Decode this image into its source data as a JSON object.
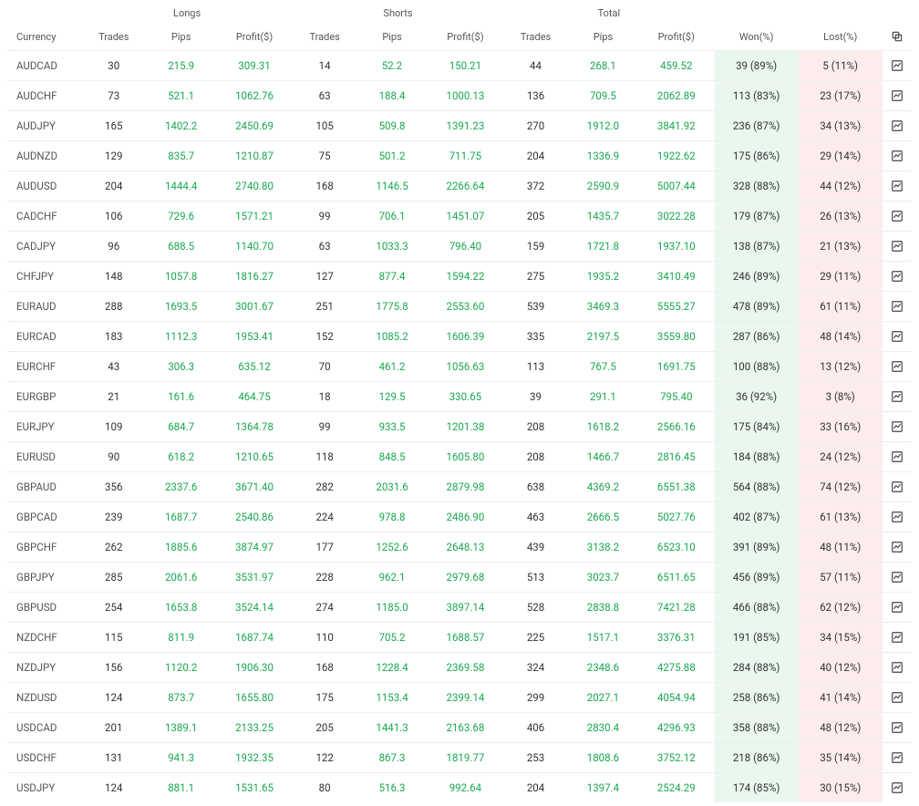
{
  "headers": {
    "group_longs": "Longs",
    "group_shorts": "Shorts",
    "group_total": "Total",
    "currency": "Currency",
    "trades": "Trades",
    "pips": "Pips",
    "profit": "Profit($)",
    "won": "Won(%)",
    "lost": "Lost(%)"
  },
  "colors": {
    "positive": "#1aa850",
    "won_bg": "#e9f7ef",
    "lost_bg": "#fdecec",
    "border": "#eeeeee",
    "text": "#333333",
    "header_text": "#555555",
    "icon": "#444444"
  },
  "rows": [
    {
      "currency": "AUDCAD",
      "l_trades": "30",
      "l_pips": "215.9",
      "l_profit": "309.31",
      "s_trades": "14",
      "s_pips": "52.2",
      "s_profit": "150.21",
      "t_trades": "44",
      "t_pips": "268.1",
      "t_profit": "459.52",
      "won": "39 (89%)",
      "lost": "5 (11%)"
    },
    {
      "currency": "AUDCHF",
      "l_trades": "73",
      "l_pips": "521.1",
      "l_profit": "1062.76",
      "s_trades": "63",
      "s_pips": "188.4",
      "s_profit": "1000.13",
      "t_trades": "136",
      "t_pips": "709.5",
      "t_profit": "2062.89",
      "won": "113 (83%)",
      "lost": "23 (17%)"
    },
    {
      "currency": "AUDJPY",
      "l_trades": "165",
      "l_pips": "1402.2",
      "l_profit": "2450.69",
      "s_trades": "105",
      "s_pips": "509.8",
      "s_profit": "1391.23",
      "t_trades": "270",
      "t_pips": "1912.0",
      "t_profit": "3841.92",
      "won": "236 (87%)",
      "lost": "34 (13%)"
    },
    {
      "currency": "AUDNZD",
      "l_trades": "129",
      "l_pips": "835.7",
      "l_profit": "1210.87",
      "s_trades": "75",
      "s_pips": "501.2",
      "s_profit": "711.75",
      "t_trades": "204",
      "t_pips": "1336.9",
      "t_profit": "1922.62",
      "won": "175 (86%)",
      "lost": "29 (14%)"
    },
    {
      "currency": "AUDUSD",
      "l_trades": "204",
      "l_pips": "1444.4",
      "l_profit": "2740.80",
      "s_trades": "168",
      "s_pips": "1146.5",
      "s_profit": "2266.64",
      "t_trades": "372",
      "t_pips": "2590.9",
      "t_profit": "5007.44",
      "won": "328 (88%)",
      "lost": "44 (12%)"
    },
    {
      "currency": "CADCHF",
      "l_trades": "106",
      "l_pips": "729.6",
      "l_profit": "1571.21",
      "s_trades": "99",
      "s_pips": "706.1",
      "s_profit": "1451.07",
      "t_trades": "205",
      "t_pips": "1435.7",
      "t_profit": "3022.28",
      "won": "179 (87%)",
      "lost": "26 (13%)"
    },
    {
      "currency": "CADJPY",
      "l_trades": "96",
      "l_pips": "688.5",
      "l_profit": "1140.70",
      "s_trades": "63",
      "s_pips": "1033.3",
      "s_profit": "796.40",
      "t_trades": "159",
      "t_pips": "1721.8",
      "t_profit": "1937.10",
      "won": "138 (87%)",
      "lost": "21 (13%)"
    },
    {
      "currency": "CHFJPY",
      "l_trades": "148",
      "l_pips": "1057.8",
      "l_profit": "1816.27",
      "s_trades": "127",
      "s_pips": "877.4",
      "s_profit": "1594.22",
      "t_trades": "275",
      "t_pips": "1935.2",
      "t_profit": "3410.49",
      "won": "246 (89%)",
      "lost": "29 (11%)"
    },
    {
      "currency": "EURAUD",
      "l_trades": "288",
      "l_pips": "1693.5",
      "l_profit": "3001.67",
      "s_trades": "251",
      "s_pips": "1775.8",
      "s_profit": "2553.60",
      "t_trades": "539",
      "t_pips": "3469.3",
      "t_profit": "5555.27",
      "won": "478 (89%)",
      "lost": "61 (11%)"
    },
    {
      "currency": "EURCAD",
      "l_trades": "183",
      "l_pips": "1112.3",
      "l_profit": "1953.41",
      "s_trades": "152",
      "s_pips": "1085.2",
      "s_profit": "1606.39",
      "t_trades": "335",
      "t_pips": "2197.5",
      "t_profit": "3559.80",
      "won": "287 (86%)",
      "lost": "48 (14%)"
    },
    {
      "currency": "EURCHF",
      "l_trades": "43",
      "l_pips": "306.3",
      "l_profit": "635.12",
      "s_trades": "70",
      "s_pips": "461.2",
      "s_profit": "1056.63",
      "t_trades": "113",
      "t_pips": "767.5",
      "t_profit": "1691.75",
      "won": "100 (88%)",
      "lost": "13 (12%)"
    },
    {
      "currency": "EURGBP",
      "l_trades": "21",
      "l_pips": "161.6",
      "l_profit": "464.75",
      "s_trades": "18",
      "s_pips": "129.5",
      "s_profit": "330.65",
      "t_trades": "39",
      "t_pips": "291.1",
      "t_profit": "795.40",
      "won": "36 (92%)",
      "lost": "3 (8%)"
    },
    {
      "currency": "EURJPY",
      "l_trades": "109",
      "l_pips": "684.7",
      "l_profit": "1364.78",
      "s_trades": "99",
      "s_pips": "933.5",
      "s_profit": "1201.38",
      "t_trades": "208",
      "t_pips": "1618.2",
      "t_profit": "2566.16",
      "won": "175 (84%)",
      "lost": "33 (16%)"
    },
    {
      "currency": "EURUSD",
      "l_trades": "90",
      "l_pips": "618.2",
      "l_profit": "1210.65",
      "s_trades": "118",
      "s_pips": "848.5",
      "s_profit": "1605.80",
      "t_trades": "208",
      "t_pips": "1466.7",
      "t_profit": "2816.45",
      "won": "184 (88%)",
      "lost": "24 (12%)"
    },
    {
      "currency": "GBPAUD",
      "l_trades": "356",
      "l_pips": "2337.6",
      "l_profit": "3671.40",
      "s_trades": "282",
      "s_pips": "2031.6",
      "s_profit": "2879.98",
      "t_trades": "638",
      "t_pips": "4369.2",
      "t_profit": "6551.38",
      "won": "564 (88%)",
      "lost": "74 (12%)"
    },
    {
      "currency": "GBPCAD",
      "l_trades": "239",
      "l_pips": "1687.7",
      "l_profit": "2540.86",
      "s_trades": "224",
      "s_pips": "978.8",
      "s_profit": "2486.90",
      "t_trades": "463",
      "t_pips": "2666.5",
      "t_profit": "5027.76",
      "won": "402 (87%)",
      "lost": "61 (13%)"
    },
    {
      "currency": "GBPCHF",
      "l_trades": "262",
      "l_pips": "1885.6",
      "l_profit": "3874.97",
      "s_trades": "177",
      "s_pips": "1252.6",
      "s_profit": "2648.13",
      "t_trades": "439",
      "t_pips": "3138.2",
      "t_profit": "6523.10",
      "won": "391 (89%)",
      "lost": "48 (11%)"
    },
    {
      "currency": "GBPJPY",
      "l_trades": "285",
      "l_pips": "2061.6",
      "l_profit": "3531.97",
      "s_trades": "228",
      "s_pips": "962.1",
      "s_profit": "2979.68",
      "t_trades": "513",
      "t_pips": "3023.7",
      "t_profit": "6511.65",
      "won": "456 (89%)",
      "lost": "57 (11%)"
    },
    {
      "currency": "GBPUSD",
      "l_trades": "254",
      "l_pips": "1653.8",
      "l_profit": "3524.14",
      "s_trades": "274",
      "s_pips": "1185.0",
      "s_profit": "3897.14",
      "t_trades": "528",
      "t_pips": "2838.8",
      "t_profit": "7421.28",
      "won": "466 (88%)",
      "lost": "62 (12%)"
    },
    {
      "currency": "NZDCHF",
      "l_trades": "115",
      "l_pips": "811.9",
      "l_profit": "1687.74",
      "s_trades": "110",
      "s_pips": "705.2",
      "s_profit": "1688.57",
      "t_trades": "225",
      "t_pips": "1517.1",
      "t_profit": "3376.31",
      "won": "191 (85%)",
      "lost": "34 (15%)"
    },
    {
      "currency": "NZDJPY",
      "l_trades": "156",
      "l_pips": "1120.2",
      "l_profit": "1906.30",
      "s_trades": "168",
      "s_pips": "1228.4",
      "s_profit": "2369.58",
      "t_trades": "324",
      "t_pips": "2348.6",
      "t_profit": "4275.88",
      "won": "284 (88%)",
      "lost": "40 (12%)"
    },
    {
      "currency": "NZDUSD",
      "l_trades": "124",
      "l_pips": "873.7",
      "l_profit": "1655.80",
      "s_trades": "175",
      "s_pips": "1153.4",
      "s_profit": "2399.14",
      "t_trades": "299",
      "t_pips": "2027.1",
      "t_profit": "4054.94",
      "won": "258 (86%)",
      "lost": "41 (14%)"
    },
    {
      "currency": "USDCAD",
      "l_trades": "201",
      "l_pips": "1389.1",
      "l_profit": "2133.25",
      "s_trades": "205",
      "s_pips": "1441.3",
      "s_profit": "2163.68",
      "t_trades": "406",
      "t_pips": "2830.4",
      "t_profit": "4296.93",
      "won": "358 (88%)",
      "lost": "48 (12%)"
    },
    {
      "currency": "USDCHF",
      "l_trades": "131",
      "l_pips": "941.3",
      "l_profit": "1932.35",
      "s_trades": "122",
      "s_pips": "867.3",
      "s_profit": "1819.77",
      "t_trades": "253",
      "t_pips": "1808.6",
      "t_profit": "3752.12",
      "won": "218 (86%)",
      "lost": "35 (14%)"
    },
    {
      "currency": "USDJPY",
      "l_trades": "124",
      "l_pips": "881.1",
      "l_profit": "1531.65",
      "s_trades": "80",
      "s_pips": "516.3",
      "s_profit": "992.64",
      "t_trades": "204",
      "t_pips": "1397.4",
      "t_profit": "2524.29",
      "won": "174 (85%)",
      "lost": "30 (15%)"
    }
  ]
}
